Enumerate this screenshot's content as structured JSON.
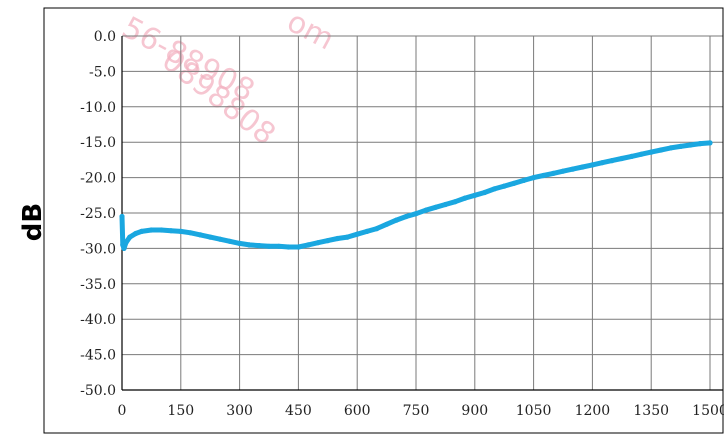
{
  "chart_data": {
    "type": "line",
    "title": "",
    "xlabel": "",
    "ylabel": "dB",
    "xlim": [
      0,
      1500
    ],
    "ylim": [
      -50,
      0
    ],
    "x_ticks": [
      "0",
      "150",
      "300",
      "450",
      "600",
      "750",
      "900",
      "1050",
      "1200",
      "1350",
      "1500"
    ],
    "y_ticks": [
      "0.0",
      "-5.0",
      "-10.0",
      "-15.0",
      "-20.0",
      "-25.0",
      "-30.0",
      "-35.0",
      "-40.0",
      "-45.0",
      "-50.0"
    ],
    "grid": true,
    "series": [
      {
        "color": "#1aa7e0",
        "points": [
          [
            0,
            -25.5
          ],
          [
            2,
            -29.5
          ],
          [
            5,
            -30.0
          ],
          [
            10,
            -29.2
          ],
          [
            20,
            -28.4
          ],
          [
            35,
            -27.9
          ],
          [
            50,
            -27.6
          ],
          [
            75,
            -27.4
          ],
          [
            100,
            -27.4
          ],
          [
            125,
            -27.5
          ],
          [
            150,
            -27.6
          ],
          [
            175,
            -27.8
          ],
          [
            200,
            -28.1
          ],
          [
            225,
            -28.4
          ],
          [
            250,
            -28.7
          ],
          [
            275,
            -29.0
          ],
          [
            300,
            -29.3
          ],
          [
            325,
            -29.5
          ],
          [
            350,
            -29.6
          ],
          [
            375,
            -29.7
          ],
          [
            400,
            -29.7
          ],
          [
            425,
            -29.8
          ],
          [
            450,
            -29.8
          ],
          [
            475,
            -29.5
          ],
          [
            500,
            -29.2
          ],
          [
            525,
            -28.9
          ],
          [
            550,
            -28.6
          ],
          [
            575,
            -28.4
          ],
          [
            600,
            -28.0
          ],
          [
            625,
            -27.6
          ],
          [
            650,
            -27.2
          ],
          [
            675,
            -26.6
          ],
          [
            700,
            -26.0
          ],
          [
            725,
            -25.5
          ],
          [
            750,
            -25.1
          ],
          [
            775,
            -24.6
          ],
          [
            800,
            -24.2
          ],
          [
            825,
            -23.8
          ],
          [
            850,
            -23.4
          ],
          [
            875,
            -22.9
          ],
          [
            900,
            -22.5
          ],
          [
            925,
            -22.1
          ],
          [
            950,
            -21.6
          ],
          [
            975,
            -21.2
          ],
          [
            1000,
            -20.8
          ],
          [
            1025,
            -20.4
          ],
          [
            1050,
            -20.0
          ],
          [
            1075,
            -19.7
          ],
          [
            1100,
            -19.4
          ],
          [
            1125,
            -19.1
          ],
          [
            1150,
            -18.8
          ],
          [
            1175,
            -18.5
          ],
          [
            1200,
            -18.2
          ],
          [
            1225,
            -17.9
          ],
          [
            1250,
            -17.6
          ],
          [
            1275,
            -17.3
          ],
          [
            1300,
            -17.0
          ],
          [
            1325,
            -16.7
          ],
          [
            1350,
            -16.4
          ],
          [
            1375,
            -16.1
          ],
          [
            1400,
            -15.8
          ],
          [
            1425,
            -15.6
          ],
          [
            1450,
            -15.4
          ],
          [
            1475,
            -15.2
          ],
          [
            1500,
            -15.1
          ]
        ]
      }
    ]
  },
  "watermark": {
    "text_top": "56-88908",
    "text_top2": "om",
    "text_main": "0898808"
  }
}
